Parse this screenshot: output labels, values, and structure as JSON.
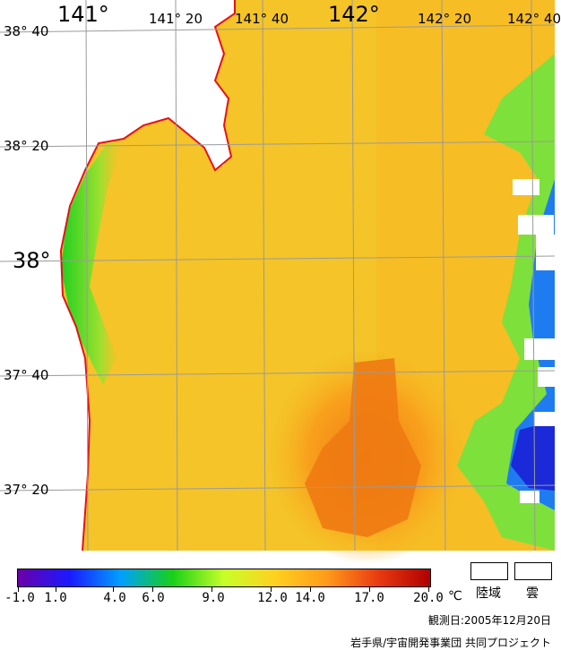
{
  "map": {
    "lon_labels_top": [
      {
        "text": "141°",
        "size": "big"
      },
      {
        "text": "141° 20",
        "size": "small"
      },
      {
        "text": "141° 40",
        "size": "small"
      },
      {
        "text": "142°",
        "size": "big"
      },
      {
        "text": "142° 20",
        "size": "small"
      },
      {
        "text": "142° 40",
        "size": "small"
      }
    ],
    "lat_labels_left": [
      {
        "text": "38° 40",
        "size": "small"
      },
      {
        "text": "38° 20",
        "size": "small"
      },
      {
        "text": "38°",
        "size": "big"
      },
      {
        "text": "37° 40",
        "size": "small"
      },
      {
        "text": "37° 20",
        "size": "small"
      }
    ],
    "colors": {
      "coastline": "#e8101a",
      "grid": "#9a9a9a",
      "land_cloud": "#ffffff"
    }
  },
  "legend": {
    "tick_labels": [
      "-1.0",
      "1.0",
      "4.0",
      "6.0",
      "9.0",
      "12.0",
      "14.0",
      "17.0",
      "20.0"
    ],
    "unit": "℃",
    "land_label": "陸域",
    "cloud_label": "雲",
    "colors": [
      "#6a00a8",
      "#1a1aff",
      "#00a0ff",
      "#18d018",
      "#c8ff28",
      "#ffd020",
      "#ff9a1a",
      "#e83a10",
      "#b00000"
    ]
  },
  "footer": {
    "observation_date": "観測日:2005年12月20日",
    "credit": "岩手県/宇宙開発事業団 共同プロジェクト"
  }
}
